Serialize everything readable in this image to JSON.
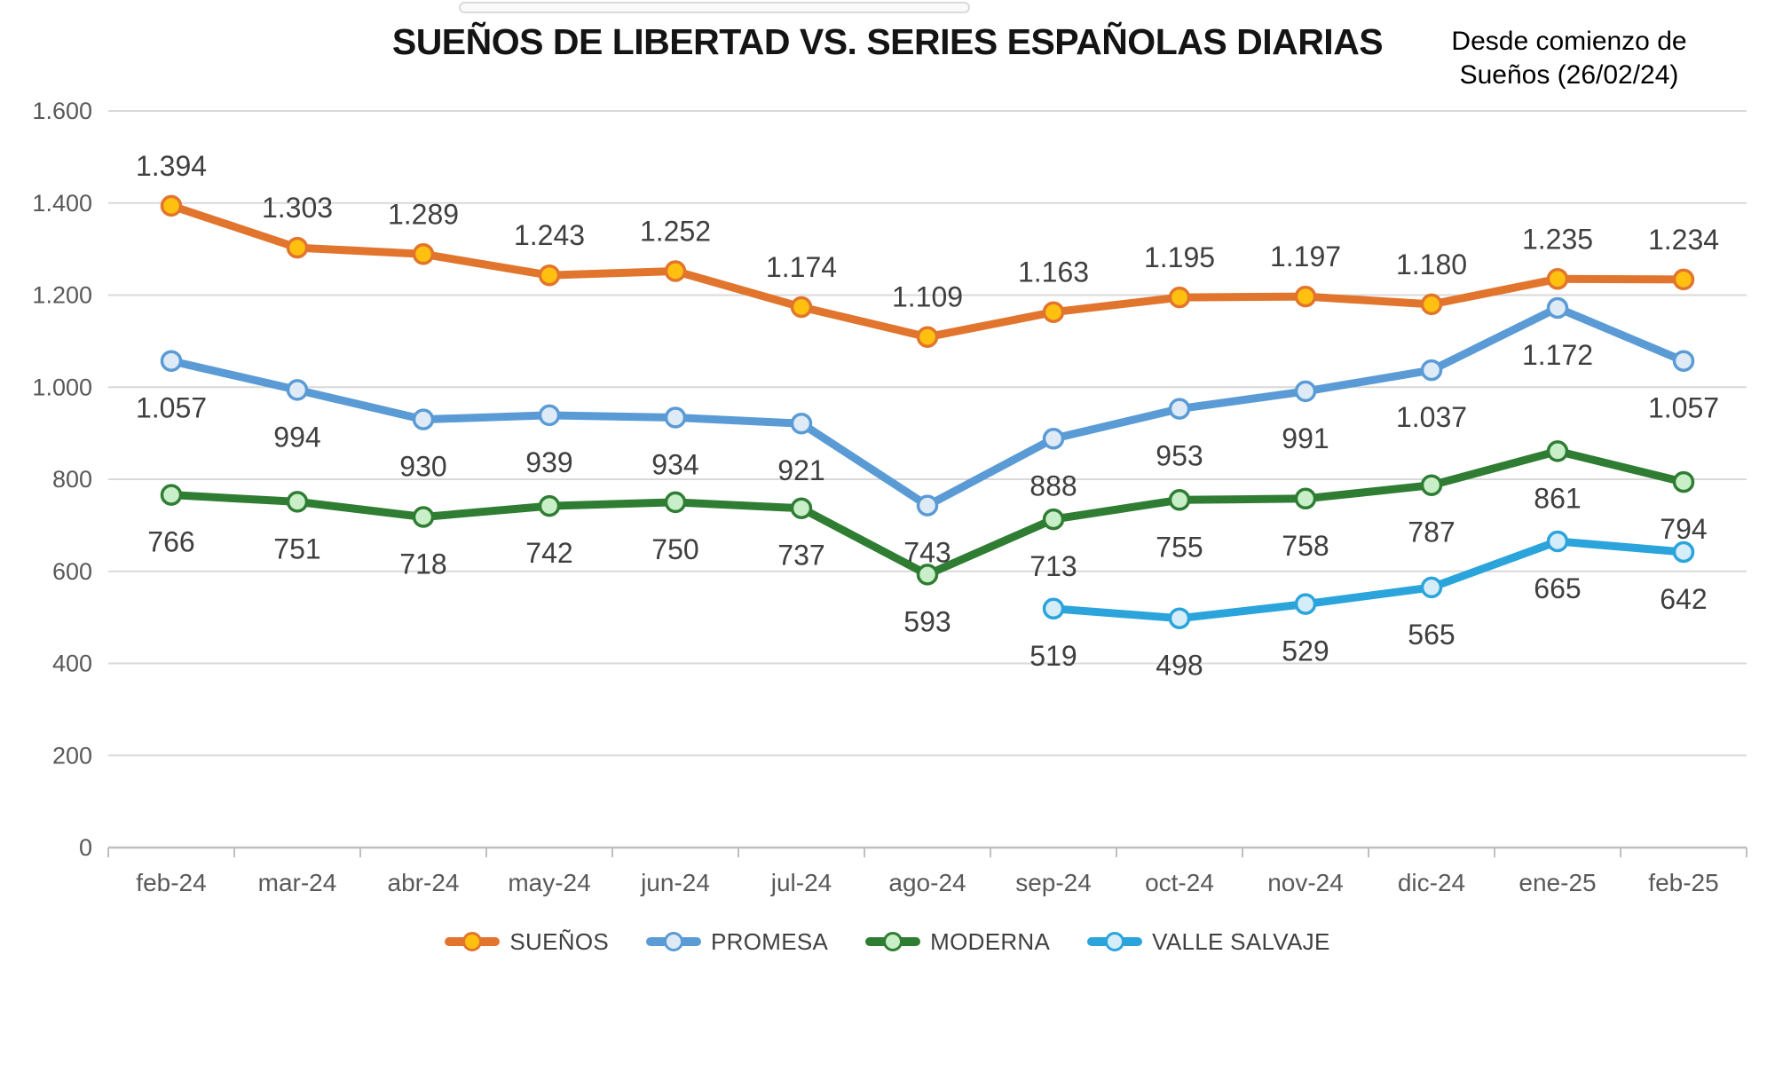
{
  "header": {
    "title": "SUEÑOS DE LIBERTAD VS. SERIES ESPAÑOLAS DIARIAS",
    "subtitle_line1": "Desde comienzo de",
    "subtitle_line2": "Sueños (26/02/24)"
  },
  "chart_data": {
    "type": "line",
    "title": "SUEÑOS DE LIBERTAD VS. SERIES ESPAÑOLAS DIARIAS",
    "subtitle": "Desde comienzo de Sueños (26/02/24)",
    "categories": [
      "feb-24",
      "mar-24",
      "abr-24",
      "may-24",
      "jun-24",
      "jul-24",
      "ago-24",
      "sep-24",
      "oct-24",
      "nov-24",
      "dic-24",
      "ene-25",
      "feb-25"
    ],
    "y_axis": {
      "min": 0,
      "max": 1600,
      "step": 200,
      "tick_labels": [
        "0",
        "200",
        "400",
        "600",
        "800",
        "1.000",
        "1.200",
        "1.400",
        "1.600"
      ]
    },
    "grid": true,
    "legend_position": "bottom",
    "colors": {
      "grid_line": "#D9D9D9",
      "axis_line": "#BFBFBF",
      "axis_text": "#595959",
      "data_label_text": "#3F3F3F"
    },
    "series": [
      {
        "name": "SUEÑOS",
        "color": "#E2752E",
        "marker_fill": "#FFC010",
        "label_position": "above",
        "values": [
          1394,
          1303,
          1289,
          1243,
          1252,
          1174,
          1109,
          1163,
          1195,
          1197,
          1180,
          1235,
          1234
        ],
        "labels": [
          "1.394",
          "1.303",
          "1.289",
          "1.243",
          "1.252",
          "1.174",
          "1.109",
          "1.163",
          "1.195",
          "1.197",
          "1.180",
          "1.235",
          "1.234"
        ]
      },
      {
        "name": "PROMESA",
        "color": "#5B9BD5",
        "marker_fill": "#DEEBF7",
        "label_position": "below",
        "values": [
          1057,
          994,
          930,
          939,
          934,
          921,
          743,
          888,
          953,
          991,
          1037,
          1172,
          1057
        ],
        "labels": [
          "1.057",
          "994",
          "930",
          "939",
          "934",
          "921",
          "743",
          "888",
          "953",
          "991",
          "1.037",
          "1.172",
          "1.057"
        ]
      },
      {
        "name": "MODERNA",
        "color": "#2F7D33",
        "marker_fill": "#C9EFC9",
        "label_position": "below",
        "values": [
          766,
          751,
          718,
          742,
          750,
          737,
          593,
          713,
          755,
          758,
          787,
          861,
          794
        ],
        "labels": [
          "766",
          "751",
          "718",
          "742",
          "750",
          "737",
          "593",
          "713",
          "755",
          "758",
          "787",
          "861",
          "794"
        ]
      },
      {
        "name": "VALLE SALVAJE",
        "color": "#2AA4DB",
        "marker_fill": "#D5EDF8",
        "label_position": "below",
        "values": [
          null,
          null,
          null,
          null,
          null,
          null,
          null,
          519,
          498,
          529,
          565,
          665,
          642
        ],
        "labels": [
          null,
          null,
          null,
          null,
          null,
          null,
          null,
          "519",
          "498",
          "529",
          "565",
          "665",
          "642"
        ]
      }
    ]
  }
}
